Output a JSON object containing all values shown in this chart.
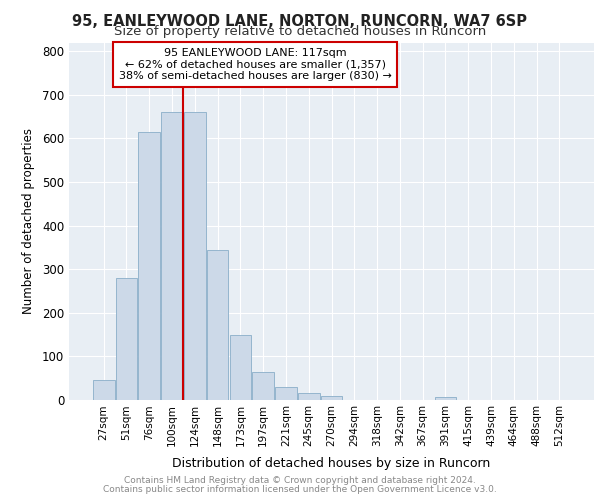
{
  "title1": "95, EANLEYWOOD LANE, NORTON, RUNCORN, WA7 6SP",
  "title2": "Size of property relative to detached houses in Runcorn",
  "xlabel": "Distribution of detached houses by size in Runcorn",
  "ylabel": "Number of detached properties",
  "footer1": "Contains HM Land Registry data © Crown copyright and database right 2024.",
  "footer2": "Contains public sector information licensed under the Open Government Licence v3.0.",
  "bar_labels": [
    "27sqm",
    "51sqm",
    "76sqm",
    "100sqm",
    "124sqm",
    "148sqm",
    "173sqm",
    "197sqm",
    "221sqm",
    "245sqm",
    "270sqm",
    "294sqm",
    "318sqm",
    "342sqm",
    "367sqm",
    "391sqm",
    "415sqm",
    "439sqm",
    "464sqm",
    "488sqm",
    "512sqm"
  ],
  "bar_values": [
    45,
    280,
    615,
    660,
    660,
    345,
    148,
    65,
    30,
    15,
    10,
    0,
    0,
    0,
    0,
    8,
    0,
    0,
    0,
    0,
    0
  ],
  "bar_color": "#ccd9e8",
  "bar_edge_color": "#8aaec8",
  "vline_color": "#cc0000",
  "vline_x_index": 4,
  "annotation_text1": "95 EANLEYWOOD LANE: 117sqm",
  "annotation_text2": "← 62% of detached houses are smaller (1,357)",
  "annotation_text3": "38% of semi-detached houses are larger (830) →",
  "annotation_box_color": "#cc0000",
  "ylim": [
    0,
    820
  ],
  "yticks": [
    0,
    100,
    200,
    300,
    400,
    500,
    600,
    700,
    800
  ],
  "plot_bg_color": "#e8eef4",
  "grid_color": "#ffffff",
  "fig_bg_color": "#ffffff",
  "title1_fontsize": 10.5,
  "title2_fontsize": 9.5
}
